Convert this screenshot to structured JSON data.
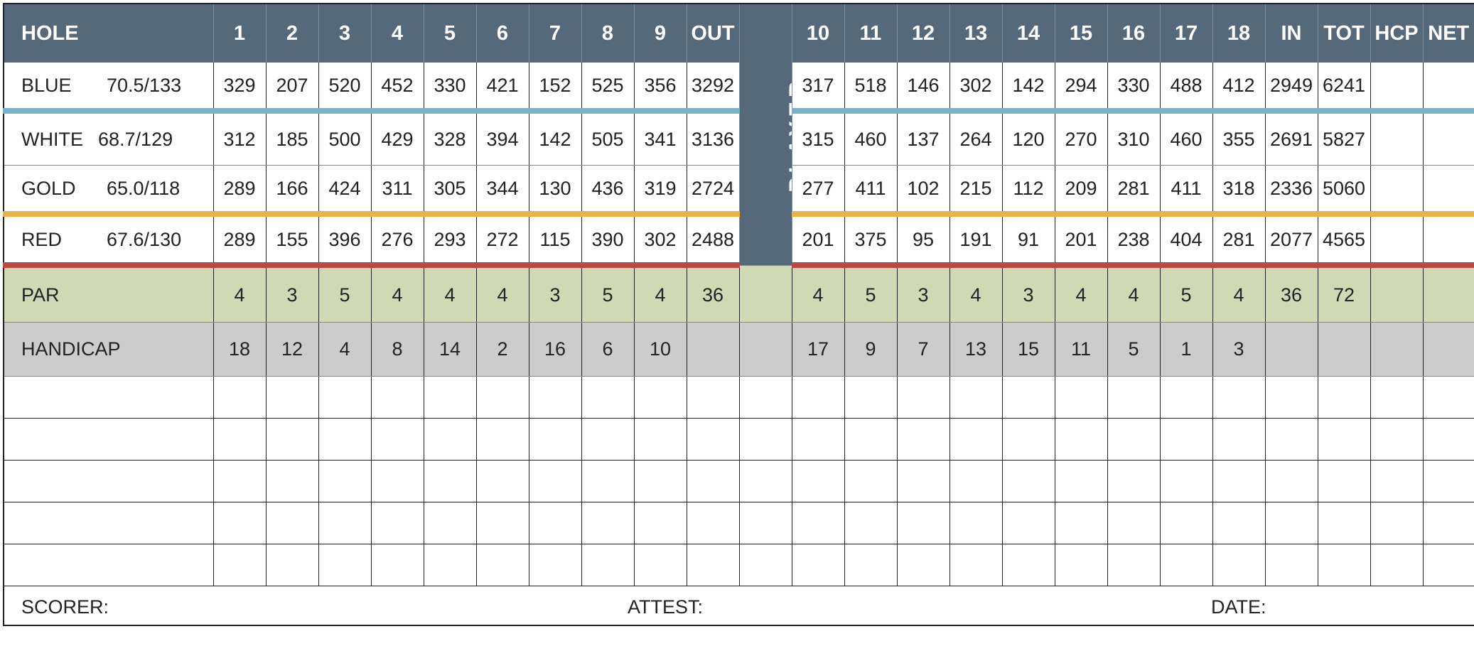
{
  "colors": {
    "header": "#56697b",
    "blue": "#79b0c8",
    "gold": "#eab24f",
    "red": "#b94a3f",
    "par": "#cfdab4",
    "handicap": "#cccccc"
  },
  "header": {
    "label": "HOLE",
    "front": [
      "1",
      "2",
      "3",
      "4",
      "5",
      "6",
      "7",
      "8",
      "9",
      "OUT"
    ],
    "back": [
      "10",
      "11",
      "12",
      "13",
      "14",
      "15",
      "16",
      "17",
      "18",
      "IN",
      "TOT",
      "HCP",
      "NET"
    ]
  },
  "player_label": "PLAYER",
  "tees": [
    {
      "name": "BLUE",
      "rating": "70.5/133",
      "color": "blue",
      "front": [
        "329",
        "207",
        "520",
        "452",
        "330",
        "421",
        "152",
        "525",
        "356",
        "3292"
      ],
      "back": [
        "317",
        "518",
        "146",
        "302",
        "142",
        "294",
        "330",
        "488",
        "412",
        "2949",
        "6241",
        "",
        ""
      ]
    },
    {
      "name": "WHITE",
      "rating": "68.7/129",
      "color": "",
      "front": [
        "312",
        "185",
        "500",
        "429",
        "328",
        "394",
        "142",
        "505",
        "341",
        "3136"
      ],
      "back": [
        "315",
        "460",
        "137",
        "264",
        "120",
        "270",
        "310",
        "460",
        "355",
        "2691",
        "5827",
        "",
        ""
      ]
    },
    {
      "name": "GOLD",
      "rating": "65.0/118",
      "color": "gold",
      "front": [
        "289",
        "166",
        "424",
        "311",
        "305",
        "344",
        "130",
        "436",
        "319",
        "2724"
      ],
      "back": [
        "277",
        "411",
        "102",
        "215",
        "112",
        "209",
        "281",
        "411",
        "318",
        "2336",
        "5060",
        "",
        ""
      ]
    },
    {
      "name": "RED",
      "rating": "67.6/130",
      "color": "red",
      "front": [
        "289",
        "155",
        "396",
        "276",
        "293",
        "272",
        "115",
        "390",
        "302",
        "2488"
      ],
      "back": [
        "201",
        "375",
        "95",
        "191",
        "91",
        "201",
        "238",
        "404",
        "281",
        "2077",
        "4565",
        "",
        ""
      ]
    }
  ],
  "par": {
    "label": "PAR",
    "front": [
      "4",
      "3",
      "5",
      "4",
      "4",
      "4",
      "3",
      "5",
      "4",
      "36"
    ],
    "back": [
      "4",
      "5",
      "3",
      "4",
      "3",
      "4",
      "4",
      "5",
      "4",
      "36",
      "72",
      "",
      ""
    ]
  },
  "handicap": {
    "label": "HANDICAP",
    "front": [
      "18",
      "12",
      "4",
      "8",
      "14",
      "2",
      "16",
      "6",
      "10",
      ""
    ],
    "back": [
      "17",
      "9",
      "7",
      "13",
      "15",
      "11",
      "5",
      "1",
      "3",
      "",
      "",
      "",
      ""
    ]
  },
  "blank_rows": 5,
  "footer": {
    "scorer": "SCORER:",
    "attest": "ATTEST:",
    "date": "DATE:"
  }
}
